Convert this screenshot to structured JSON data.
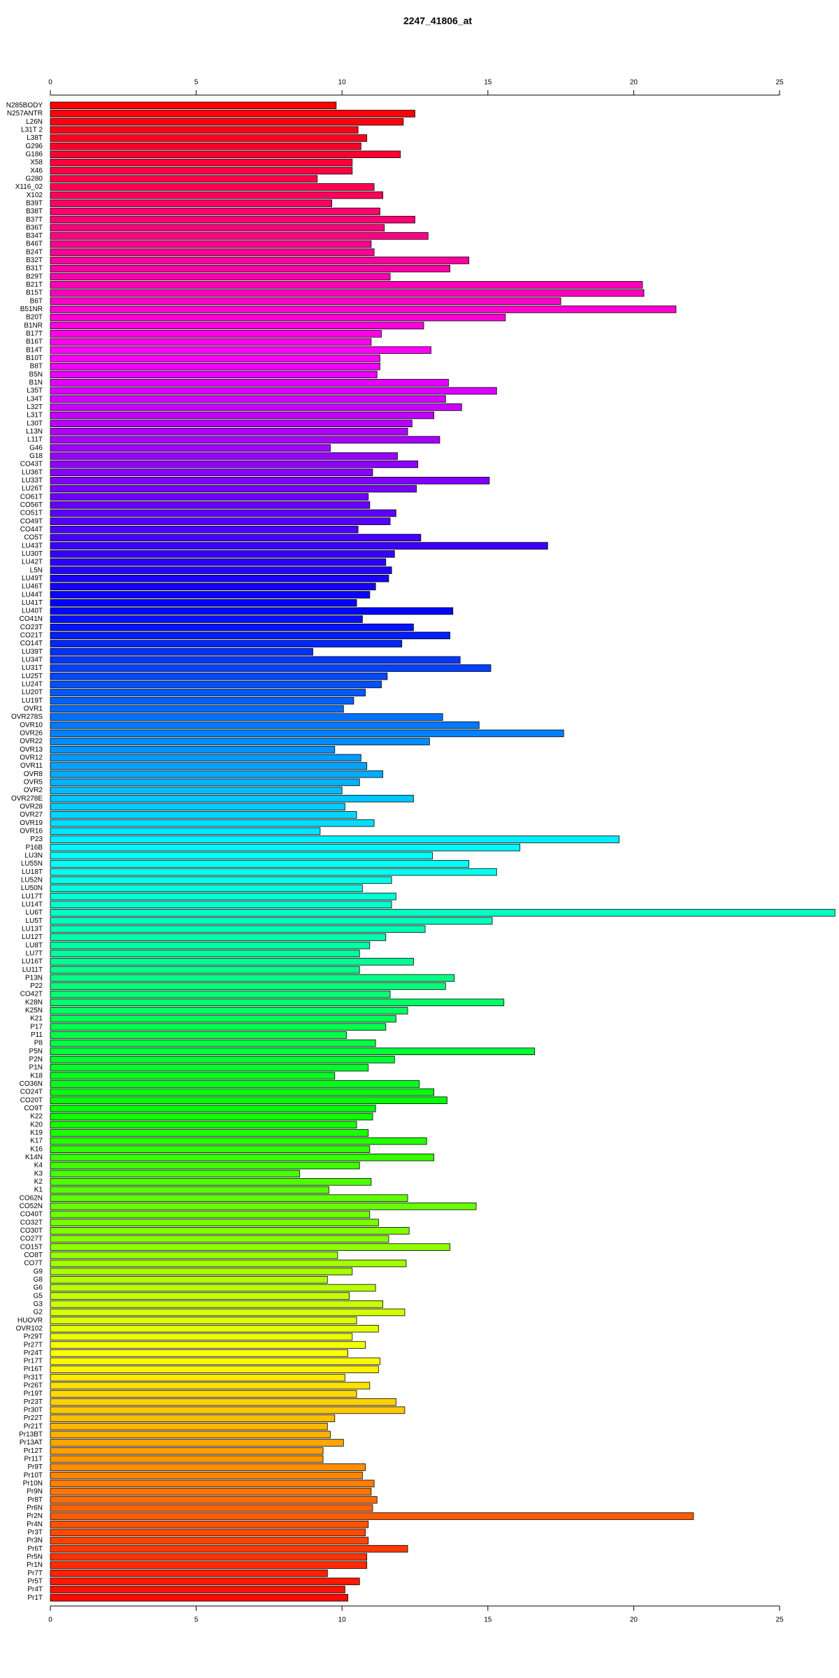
{
  "chart_data": {
    "type": "hbar",
    "title": "2247_41806_at",
    "categories": [
      "N285BODY",
      "N257ANTR",
      "L26N",
      "L31T 2",
      "L38T",
      "G296",
      "G186",
      "X58",
      "X46",
      "G280",
      "X116_02",
      "X102",
      "B39T",
      "B38T",
      "B37T",
      "B36T",
      "B34T",
      "B46T",
      "B24T",
      "B32T",
      "B31T",
      "B29T",
      "B21T",
      "B15T",
      "B6T",
      "B51NR",
      "B20T",
      "B1NR",
      "B17T",
      "B16T",
      "B14T",
      "B10T",
      "B8T",
      "B5N",
      "B1N",
      "L35T",
      "L34T",
      "L32T",
      "L31T",
      "L30T",
      "L13N",
      "L11T",
      "G46",
      "G18",
      "CO43T",
      "LU36T",
      "LU33T",
      "LU26T",
      "CO61T",
      "CO56T",
      "CO51T",
      "CO49T",
      "CO44T",
      "CO5T",
      "LU43T",
      "LU30T",
      "LU42T",
      "L5N",
      "LU49T",
      "LU46T",
      "LU44T",
      "LU41T",
      "LU40T",
      "CO41N",
      "CO23T",
      "CO21T",
      "CO14T",
      "LU39T",
      "LU34T",
      "LU31T",
      "LU25T",
      "LU24T",
      "LU20T",
      "LU19T",
      "OVR1",
      "OVR278S",
      "OVR10",
      "OVR26",
      "OVR22",
      "OVR13",
      "OVR12",
      "OVR11",
      "OVR8",
      "OVR5",
      "OVR2",
      "OVR278E",
      "OVR28",
      "OVR27",
      "OVR19",
      "OVR16",
      "P23",
      "P16B",
      "LU3N",
      "LU55N",
      "LU18T",
      "LU52N",
      "LU50N",
      "LU17T",
      "LU14T",
      "LU6T",
      "LU5T",
      "LU13T",
      "LU12T",
      "LU8T",
      "LU7T",
      "LU16T",
      "LU11T",
      "P13N",
      "P22",
      "CO42T",
      "K28N",
      "K25N",
      "K21",
      "P17",
      "P11",
      "P8",
      "P5N",
      "P2N",
      "P1N",
      "K18",
      "CO36N",
      "CO24T",
      "CO20T",
      "CO9T",
      "K22",
      "K20",
      "K19",
      "K17",
      "K16",
      "K14N",
      "K4",
      "K3",
      "K2",
      "K1",
      "CO62N",
      "CO52N",
      "CO40T",
      "CO32T",
      "CO30T",
      "CO27T",
      "CO15T",
      "CO8T",
      "CO7T",
      "G9",
      "G8",
      "G6",
      "G5",
      "G3",
      "G2",
      "HUOVR",
      "OVR102",
      "Pr29T",
      "Pr27T",
      "Pr24T",
      "Pr17T",
      "Pr16T",
      "Pr31T",
      "Pr26T",
      "Pr19T",
      "Pr23T",
      "Pr30T",
      "Pr22T",
      "Pr21T",
      "Pr13BT",
      "Pr13AT",
      "Pr12T",
      "Pr11T",
      "Pr9T",
      "Pr10T",
      "Pr10N",
      "Pr9N",
      "Pr8T",
      "Pr6N",
      "Pr2N",
      "Pr4N",
      "Pr3T",
      "Pr3N",
      "Pr6T",
      "Pr5N",
      "Pr1N",
      "Pr7T",
      "Pr5T",
      "Pr4T",
      "Pr1T"
    ],
    "values": [
      9.8,
      12.5,
      12.1,
      10.55,
      10.85,
      10.65,
      12.0,
      10.35,
      10.35,
      9.15,
      11.1,
      11.4,
      9.65,
      11.3,
      12.5,
      11.45,
      12.95,
      11.0,
      11.1,
      14.35,
      13.7,
      11.65,
      20.3,
      20.35,
      17.5,
      21.45,
      15.6,
      12.8,
      11.35,
      11.0,
      13.05,
      11.3,
      11.3,
      11.2,
      13.65,
      15.3,
      13.55,
      14.1,
      13.15,
      12.4,
      12.25,
      13.35,
      9.6,
      11.9,
      12.6,
      11.05,
      15.05,
      12.55,
      10.9,
      10.95,
      11.85,
      11.65,
      10.55,
      12.7,
      17.05,
      11.8,
      11.5,
      11.7,
      11.6,
      11.15,
      10.95,
      10.5,
      13.8,
      10.7,
      12.45,
      13.7,
      12.05,
      9.0,
      14.05,
      15.1,
      11.55,
      11.35,
      10.8,
      10.4,
      10.05,
      13.45,
      14.7,
      17.6,
      13.0,
      9.75,
      10.65,
      10.85,
      11.4,
      10.6,
      10.0,
      12.45,
      10.1,
      10.5,
      11.1,
      9.25,
      19.5,
      16.1,
      13.1,
      14.35,
      15.3,
      11.7,
      10.7,
      11.85,
      11.7,
      26.9,
      15.15,
      12.85,
      11.5,
      10.95,
      10.6,
      12.45,
      10.6,
      13.85,
      13.55,
      11.65,
      15.55,
      12.25,
      11.85,
      11.5,
      10.15,
      11.15,
      16.6,
      11.8,
      10.9,
      9.75,
      12.65,
      13.15,
      13.6,
      11.15,
      11.05,
      10.5,
      10.9,
      12.9,
      10.95,
      13.15,
      10.6,
      8.55,
      11.0,
      9.55,
      12.25,
      14.6,
      10.95,
      11.25,
      12.3,
      11.6,
      13.7,
      9.85,
      12.2,
      10.35,
      9.5,
      11.15,
      10.25,
      11.4,
      12.15,
      10.5,
      11.25,
      10.35,
      10.8,
      10.2,
      11.3,
      11.25,
      10.1,
      10.95,
      10.5,
      11.85,
      12.15,
      9.75,
      9.5,
      9.6,
      10.05,
      9.35,
      9.35,
      10.8,
      10.7,
      11.1,
      11.0,
      11.2,
      11.05,
      22.05,
      10.9,
      10.8,
      10.9,
      12.25,
      10.85,
      10.85,
      9.5,
      10.6,
      10.1,
      10.2
    ],
    "palette": "rainbow",
    "xlim": [
      0,
      25
    ],
    "xticks": [
      0,
      5,
      10,
      15,
      20,
      25
    ]
  }
}
